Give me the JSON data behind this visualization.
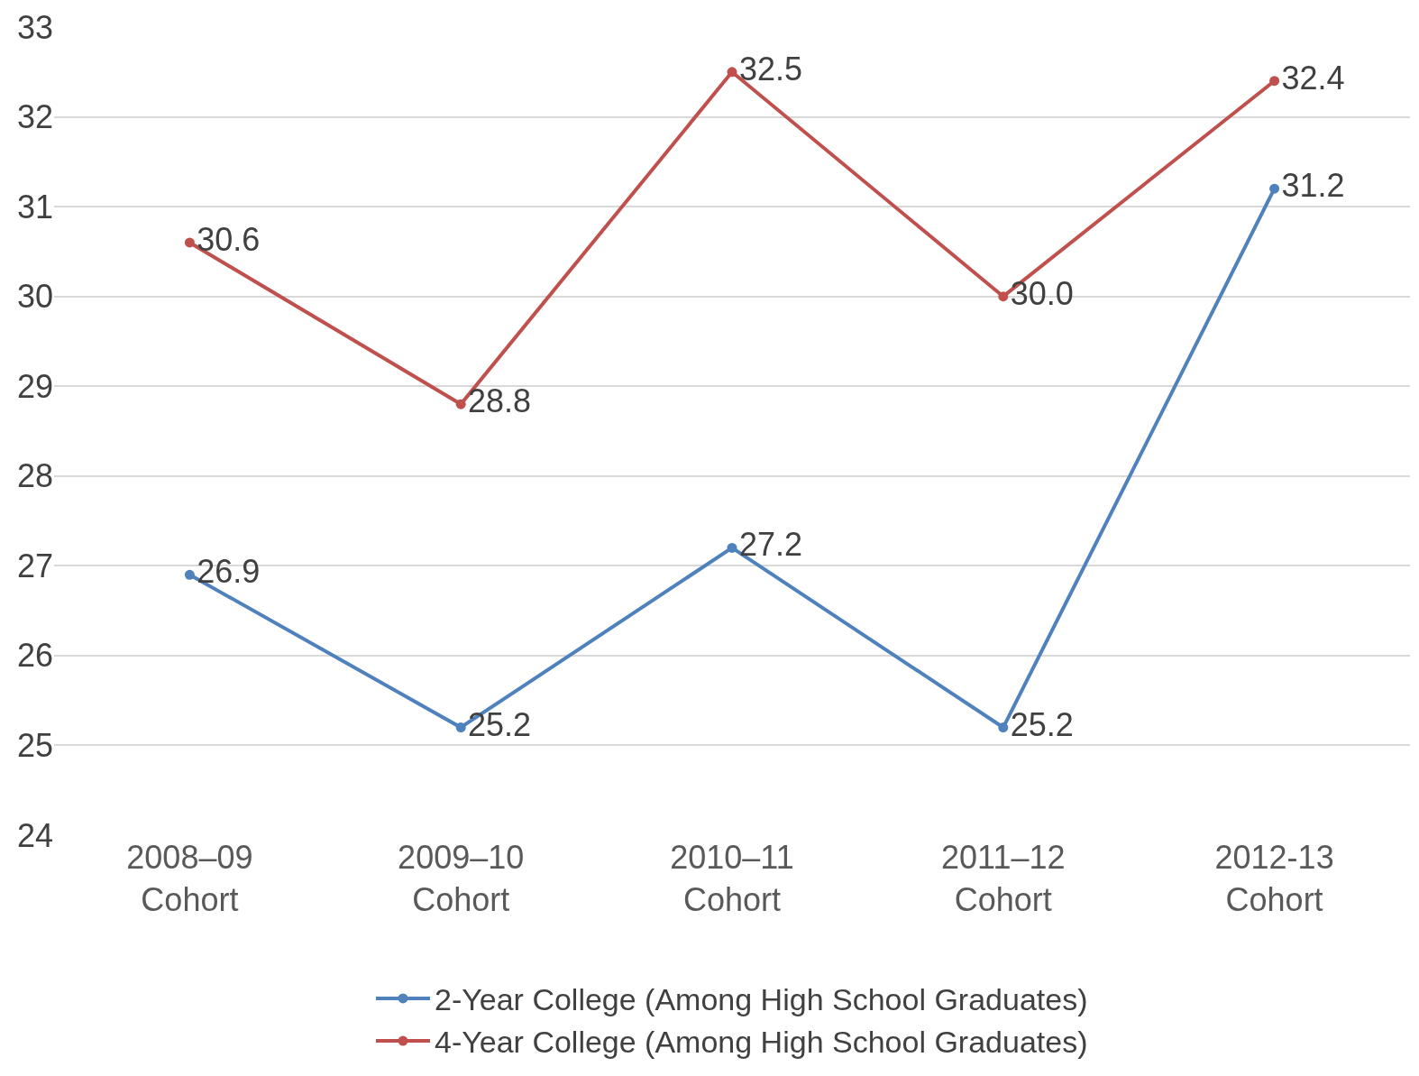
{
  "chart_data": {
    "type": "line",
    "categories": [
      "2008–09\nCohort",
      "2009–10\nCohort",
      "2010–11\nCohort",
      "2011–12\nCohort",
      "2012-13\nCohort"
    ],
    "series": [
      {
        "name": "2-Year College (Among High School Graduates)",
        "color": "#4f81bd",
        "values": [
          26.9,
          25.2,
          27.2,
          25.2,
          31.2
        ],
        "value_labels": [
          "26.9",
          "25.2",
          "27.2",
          "25.2",
          "31.2"
        ]
      },
      {
        "name": "4-Year College (Among High School Graduates)",
        "color": "#c0504d",
        "values": [
          30.6,
          28.8,
          32.5,
          30.0,
          32.4
        ],
        "value_labels": [
          "30.6",
          "28.8",
          "32.5",
          "30.0",
          "32.4"
        ]
      }
    ],
    "ylim": [
      24,
      33
    ],
    "yticks": [
      24,
      25,
      26,
      27,
      28,
      29,
      30,
      31,
      32,
      33
    ],
    "grid": "y",
    "legend": "bottom",
    "marker": "circle",
    "line_style": "solid"
  }
}
